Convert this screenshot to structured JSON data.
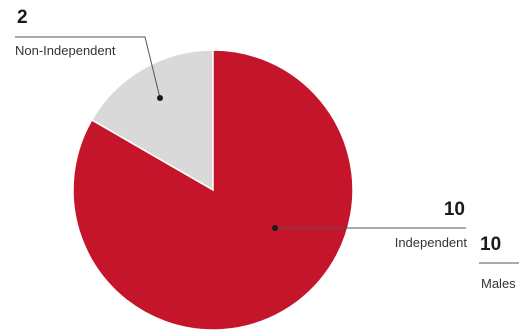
{
  "chart_data": {
    "type": "pie",
    "categories": [
      "Non-Independent",
      "Independent"
    ],
    "values": [
      2,
      10
    ],
    "colors": [
      "#d9d9d9",
      "#c4152b"
    ],
    "start_angle_deg": 0,
    "direction": "counter-clockwise"
  },
  "labels": {
    "non_independent_value": "2",
    "non_independent_name": "Non-Independent",
    "independent_value": "10",
    "independent_name": "Independent",
    "males_value": "10",
    "males_name": "Males"
  }
}
